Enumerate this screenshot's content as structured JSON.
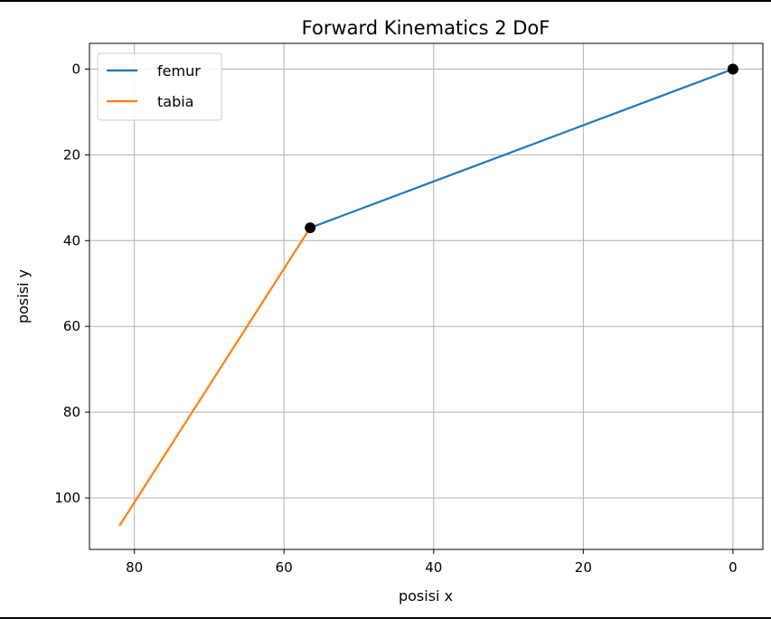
{
  "chart_data": {
    "type": "line",
    "title": "Forward Kinematics 2 DoF",
    "xlabel": "posisi x",
    "ylabel": "posisi y",
    "xlim": [
      86,
      -4
    ],
    "ylim": [
      112,
      -6
    ],
    "x_inverted": true,
    "y_inverted": true,
    "grid": true,
    "legend_position": "top-left",
    "xticks": [
      80,
      60,
      40,
      20,
      0
    ],
    "yticks": [
      0,
      20,
      40,
      60,
      80,
      100
    ],
    "series": [
      {
        "name": "femur",
        "color": "#1f77b4",
        "x": [
          0,
          56.5
        ],
        "y": [
          0,
          37
        ]
      },
      {
        "name": "tabia",
        "color": "#ff7f0e",
        "x": [
          56.5,
          82
        ],
        "y": [
          37,
          106.5
        ]
      }
    ],
    "joints": {
      "color": "#000000",
      "x": [
        0,
        56.5
      ],
      "y": [
        0,
        37
      ]
    }
  }
}
